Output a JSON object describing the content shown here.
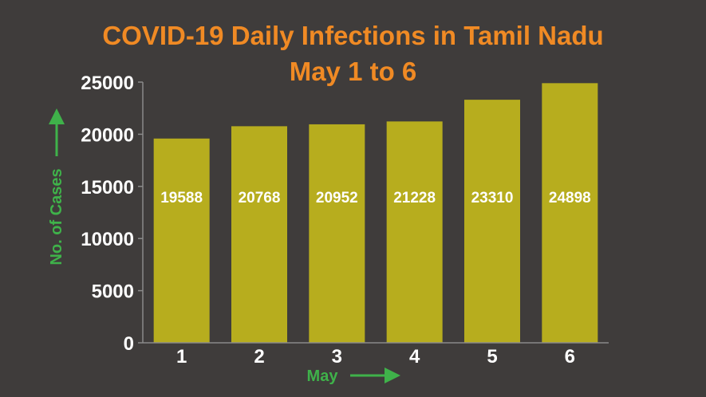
{
  "chart_data": {
    "type": "bar",
    "title": "COVID-19 Daily Infections in Tamil Nadu",
    "subtitle": "May 1 to 6",
    "categories": [
      "1",
      "2",
      "3",
      "4",
      "5",
      "6"
    ],
    "values": [
      19588,
      20768,
      20952,
      21228,
      23310,
      24898
    ],
    "data_labels": [
      "19588",
      "20768",
      "20952",
      "21228",
      "23310",
      "24898"
    ],
    "xlabel": "May",
    "ylabel": "No. of Cases",
    "ylim": [
      0,
      25000
    ],
    "yticks": [
      "0",
      "5000",
      "10000",
      "15000",
      "20000",
      "25000"
    ],
    "grid": false,
    "legend": "none",
    "colors": {
      "background": "#3f3c3b",
      "bar": "#b7ad1e",
      "title": "#f08a24",
      "axis_label": "#3fb24a",
      "text": "#ffffff",
      "axis_line": "#8a8a8a"
    }
  }
}
